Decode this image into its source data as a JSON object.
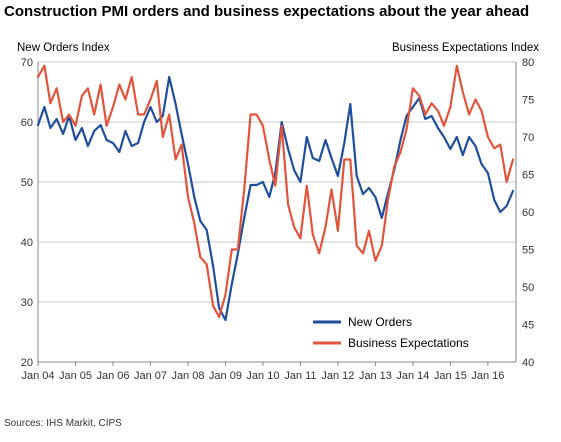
{
  "title": "Construction PMI orders and business expectations about the year ahead",
  "sources": "Sources: IHS Markit, CIPS",
  "chart_data": {
    "type": "line",
    "title": "Construction PMI orders and business expectations about the year ahead",
    "y_left_label": "New Orders Index",
    "y_right_label": "Business Expectations Index",
    "y_left_ticks": [
      "20",
      "30",
      "40",
      "50",
      "60",
      "70"
    ],
    "y_right_ticks": [
      "40",
      "45",
      "50",
      "55",
      "60",
      "65",
      "70",
      "75",
      "80"
    ],
    "x_ticks": [
      "Jan 04",
      "Jan 05",
      "Jan 06",
      "Jan 07",
      "Jan 08",
      "Jan 09",
      "Jan 10",
      "Jan 11",
      "Jan 12",
      "Jan 13",
      "Jan 14",
      "Jan 15",
      "Jan 16"
    ],
    "ylim_left": [
      20,
      70
    ],
    "ylim_right": [
      40,
      80
    ],
    "x_range": [
      2004.0,
      2016.75
    ],
    "grid": "horizontal",
    "legend_position": "bottom-right",
    "series": [
      {
        "name": "New Orders",
        "axis": "left",
        "color": "#1f4e9c",
        "x": [
          2004.0,
          2004.17,
          2004.33,
          2004.5,
          2004.67,
          2004.83,
          2005.0,
          2005.17,
          2005.33,
          2005.5,
          2005.67,
          2005.83,
          2006.0,
          2006.17,
          2006.33,
          2006.5,
          2006.67,
          2006.83,
          2007.0,
          2007.17,
          2007.33,
          2007.5,
          2007.67,
          2007.83,
          2008.0,
          2008.17,
          2008.33,
          2008.5,
          2008.67,
          2008.83,
          2009.0,
          2009.17,
          2009.33,
          2009.5,
          2009.67,
          2009.83,
          2010.0,
          2010.17,
          2010.33,
          2010.5,
          2010.67,
          2010.83,
          2011.0,
          2011.17,
          2011.33,
          2011.5,
          2011.67,
          2011.83,
          2012.0,
          2012.17,
          2012.33,
          2012.5,
          2012.67,
          2012.83,
          2013.0,
          2013.17,
          2013.33,
          2013.5,
          2013.67,
          2013.83,
          2014.0,
          2014.17,
          2014.33,
          2014.5,
          2014.67,
          2014.83,
          2015.0,
          2015.17,
          2015.33,
          2015.5,
          2015.67,
          2015.83,
          2016.0,
          2016.17,
          2016.33,
          2016.5,
          2016.67
        ],
        "y": [
          59.5,
          62.5,
          59.0,
          60.5,
          58.0,
          61.0,
          57.0,
          59.0,
          56.0,
          58.5,
          59.5,
          57.0,
          56.5,
          55.0,
          58.5,
          56.0,
          56.5,
          60.0,
          62.5,
          60.0,
          61.0,
          67.5,
          63.0,
          58.0,
          53.0,
          47.5,
          43.5,
          42.0,
          36.0,
          29.0,
          27.0,
          33.0,
          38.0,
          44.0,
          49.5,
          49.5,
          50.0,
          47.5,
          51.5,
          60.0,
          55.5,
          52.0,
          50.0,
          57.5,
          54.0,
          53.5,
          57.0,
          54.0,
          51.0,
          56.5,
          63.0,
          51.0,
          48.0,
          49.0,
          47.5,
          44.0,
          48.0,
          52.0,
          57.0,
          61.0,
          62.5,
          64.0,
          60.5,
          61.0,
          59.0,
          57.5,
          55.5,
          57.5,
          54.5,
          57.5,
          56.0,
          53.0,
          51.5,
          47.0,
          45.0,
          46.0,
          48.5
        ]
      },
      {
        "name": "Business Expectations",
        "axis": "right",
        "color": "#e2543c",
        "x": [
          2004.0,
          2004.17,
          2004.33,
          2004.5,
          2004.67,
          2004.83,
          2005.0,
          2005.17,
          2005.33,
          2005.5,
          2005.67,
          2005.83,
          2006.0,
          2006.17,
          2006.33,
          2006.5,
          2006.67,
          2006.83,
          2007.0,
          2007.17,
          2007.33,
          2007.5,
          2007.67,
          2007.83,
          2008.0,
          2008.17,
          2008.33,
          2008.5,
          2008.67,
          2008.83,
          2009.0,
          2009.17,
          2009.33,
          2009.5,
          2009.67,
          2009.83,
          2010.0,
          2010.17,
          2010.33,
          2010.5,
          2010.67,
          2010.83,
          2011.0,
          2011.17,
          2011.33,
          2011.5,
          2011.67,
          2011.83,
          2012.0,
          2012.17,
          2012.33,
          2012.5,
          2012.67,
          2012.83,
          2013.0,
          2013.17,
          2013.33,
          2013.5,
          2013.67,
          2013.83,
          2014.0,
          2014.17,
          2014.33,
          2014.5,
          2014.67,
          2014.83,
          2015.0,
          2015.17,
          2015.33,
          2015.5,
          2015.67,
          2015.83,
          2016.0,
          2016.17,
          2016.33,
          2016.5,
          2016.67
        ],
        "y": [
          78.0,
          79.5,
          74.5,
          76.5,
          72.0,
          73.0,
          71.5,
          75.5,
          76.5,
          73.0,
          77.0,
          71.5,
          74.0,
          77.0,
          75.0,
          78.0,
          73.0,
          73.0,
          75.0,
          77.5,
          70.0,
          73.0,
          67.0,
          69.0,
          62.0,
          58.5,
          54.0,
          53.0,
          47.5,
          46.0,
          49.0,
          55.0,
          55.0,
          63.0,
          73.0,
          73.0,
          71.5,
          67.0,
          63.5,
          71.5,
          61.0,
          58.0,
          56.5,
          63.5,
          57.0,
          54.5,
          58.0,
          63.0,
          57.5,
          67.0,
          67.0,
          55.5,
          54.5,
          57.5,
          53.5,
          55.5,
          61.5,
          66.0,
          68.0,
          71.0,
          76.5,
          75.5,
          73.0,
          74.5,
          73.5,
          71.5,
          74.0,
          79.5,
          76.0,
          73.0,
          75.0,
          73.5,
          70.0,
          68.5,
          69.0,
          64.0,
          67.0
        ]
      }
    ]
  }
}
